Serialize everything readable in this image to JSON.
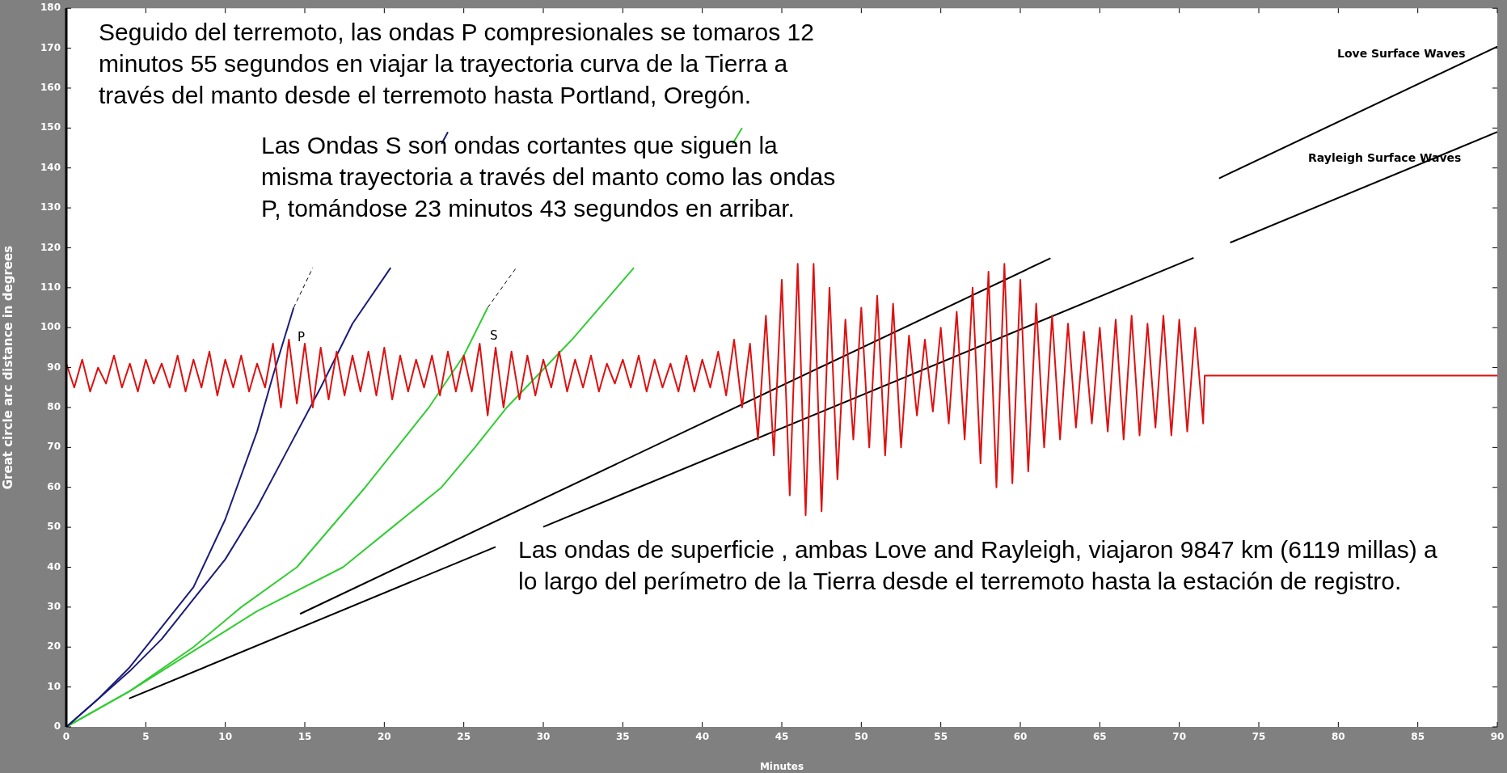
{
  "chart_data": {
    "type": "line",
    "xlabel": "Minutes",
    "ylabel": "Great circle arc distance in degrees",
    "xlim": [
      0,
      90
    ],
    "ylim": [
      0,
      180
    ],
    "xticks": [
      0,
      5,
      10,
      15,
      20,
      25,
      30,
      35,
      40,
      45,
      50,
      55,
      60,
      65,
      70,
      75,
      80,
      85,
      90
    ],
    "yticks": [
      0,
      10,
      20,
      30,
      40,
      50,
      60,
      70,
      80,
      90,
      100,
      110,
      120,
      130,
      140,
      150,
      160,
      170,
      180
    ],
    "grid": false,
    "legend": false,
    "marker": "none",
    "line_style": "solid",
    "series": [
      {
        "color": "#dd1111",
        "x": [
          0,
          0.5,
          1,
          1.5,
          2,
          2.5,
          3,
          3.5,
          4,
          4.5,
          5,
          5.5,
          6,
          6.5,
          7,
          7.5,
          8,
          8.5,
          9,
          9.5,
          10,
          10.5,
          11,
          11.5,
          12,
          12.5,
          13,
          13.5,
          14,
          14.5,
          15,
          15.5,
          16,
          16.5,
          17,
          17.5,
          18,
          18.5,
          19,
          19.5,
          20,
          20.5,
          21,
          21.5,
          22,
          22.5,
          23,
          23.5,
          24,
          24.5,
          25,
          25.5,
          26,
          26.5,
          27,
          27.5,
          28,
          28.5,
          29,
          29.5,
          30,
          30.5,
          31,
          31.5,
          32,
          32.5,
          33,
          33.5,
          34,
          34.5,
          35,
          35.5,
          36,
          36.5,
          37,
          37.5,
          38,
          38.5,
          39,
          39.5,
          40,
          40.5,
          41,
          41.5,
          42,
          42.5,
          43,
          43.5,
          44,
          44.5,
          45,
          45.5,
          46,
          46.5,
          47,
          47.5,
          48,
          48.5,
          49,
          49.5,
          50,
          50.5,
          51,
          51.5,
          52,
          52.5,
          53,
          53.5,
          54,
          54.5,
          55,
          55.5,
          56,
          56.5,
          57,
          57.5,
          58,
          58.5,
          59,
          59.5,
          60,
          60.5,
          61,
          61.5,
          62,
          62.5,
          63,
          63.5,
          64,
          64.5,
          65,
          65.5,
          66,
          66.5,
          67,
          67.5,
          68,
          68.5,
          69,
          69.5,
          70,
          70.5,
          71,
          71.5,
          71.6,
          90
        ],
        "values": [
          91,
          85,
          92,
          84,
          90,
          86,
          93,
          85,
          91,
          84,
          92,
          86,
          91,
          85,
          93,
          84,
          92,
          85,
          94,
          83,
          92,
          85,
          93,
          84,
          91,
          85,
          96,
          80,
          97,
          81,
          96,
          80,
          95,
          82,
          94,
          83,
          93,
          84,
          94,
          83,
          95,
          82,
          93,
          84,
          92,
          85,
          93,
          83,
          94,
          84,
          93,
          84,
          96,
          78,
          95,
          80,
          94,
          82,
          93,
          83,
          92,
          85,
          94,
          84,
          92,
          85,
          93,
          84,
          91,
          86,
          92,
          85,
          93,
          84,
          92,
          85,
          91,
          84,
          93,
          84,
          92,
          85,
          94,
          83,
          97,
          80,
          96,
          72,
          103,
          68,
          112,
          58,
          116,
          53,
          116,
          54,
          110,
          62,
          102,
          72,
          105,
          70,
          108,
          68,
          106,
          70,
          98,
          78,
          97,
          79,
          100,
          76,
          104,
          72,
          110,
          66,
          114,
          60,
          116,
          61,
          112,
          64,
          106,
          70,
          103,
          72,
          101,
          75,
          99,
          76,
          100,
          74,
          102,
          72,
          103,
          73,
          101,
          75,
          103,
          73,
          102,
          74,
          100,
          76,
          88,
          88
        ]
      },
      {
        "color": "#1c1c7a",
        "x": [
          0,
          2,
          4,
          6,
          8,
          10,
          12,
          13,
          14.3
        ],
        "values": [
          0,
          7,
          15,
          25,
          35,
          52,
          74,
          88,
          105
        ]
      },
      {
        "color": "#000000",
        "line_style": "dashed",
        "x": [
          14.3,
          15.5
        ],
        "values": [
          105,
          115
        ]
      },
      {
        "color": "#1c1c7a",
        "x": [
          0,
          2,
          4,
          6,
          8,
          10,
          12,
          14,
          16,
          18,
          20.4,
          22,
          23.6,
          24
        ],
        "values": [
          0,
          7,
          14,
          22,
          32,
          42,
          55,
          70,
          85,
          101,
          115,
          null,
          146,
          149
        ]
      },
      {
        "color": "#33cc33",
        "x": [
          0,
          4,
          8,
          11,
          14.5,
          18.8,
          22.8,
          25,
          26.5
        ],
        "values": [
          0,
          9,
          20,
          30,
          40,
          60,
          80,
          93,
          105
        ]
      },
      {
        "color": "#000000",
        "line_style": "dashed",
        "x": [
          26.5,
          28.3
        ],
        "values": [
          105,
          115
        ]
      },
      {
        "color": "#33cc33",
        "x": [
          0,
          4,
          8,
          12,
          17.4,
          20.5,
          23.6,
          25.7,
          27.7,
          31.8,
          35.7,
          39,
          41.9,
          42.5
        ],
        "values": [
          0,
          9,
          19,
          29,
          40,
          50,
          60,
          70,
          80,
          97,
          115,
          null,
          146,
          150
        ]
      },
      {
        "color": "#000000",
        "x": [
          14.7,
          61.9,
          67,
          72.5,
          90
        ],
        "values": [
          28.3,
          117.4,
          null,
          137.4,
          170.4
        ]
      },
      {
        "color": "#000000",
        "x": [
          3.95,
          27,
          28.5,
          30,
          70.9,
          72,
          73.2,
          90
        ],
        "values": [
          7.1,
          45.1,
          null,
          50.1,
          117.5,
          null,
          121.3,
          149
        ]
      }
    ],
    "annotations": [
      "Seguido del terremoto, las ondas P compresionales se tomaros 12 minutos 55 segundos en viajar la trayectoria curva de la Tierra a través del manto desde el terremoto hasta Portland, Oregón.",
      "Las Ondas S son ondas cortantes  que siguen la misma trayectoria a través del manto  como las ondas P, tomándose 23 minutos 43 segundos en arribar.",
      "Las ondas de superficie , ambas Love and Rayleigh, viajaron 9847 km  (6119 millas) a lo largo del perímetro de la Tierra desde el terremoto hasta la estación de registro.",
      "P",
      "S",
      "Love Surface Waves",
      "Rayleigh Surface Waves"
    ]
  }
}
